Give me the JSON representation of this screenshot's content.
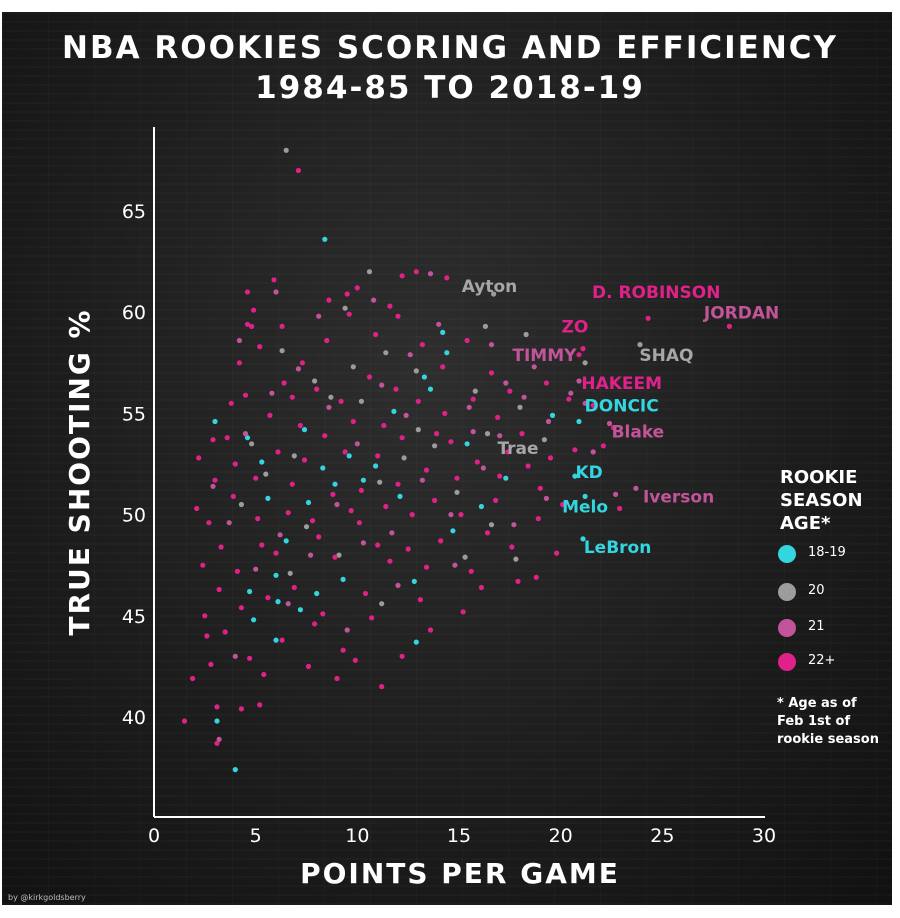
{
  "title_lines": [
    "NBA ROOKIES SCORING AND EFFICIENCY",
    "1984-85 TO 2018-19"
  ],
  "credit": "by @kirkgoldsberry",
  "legend": {
    "title_lines": [
      "ROOKIE",
      "SEASON",
      "AGE*"
    ],
    "items": [
      {
        "label": "18-19",
        "color": "#33d6e0"
      },
      {
        "label": "20",
        "color": "#9c9c9c"
      },
      {
        "label": "21",
        "color": "#c2559a"
      },
      {
        "label": "22+",
        "color": "#e0218a"
      }
    ],
    "note_lines": [
      "* Age as of",
      "Feb 1st of",
      "rookie season"
    ]
  },
  "chart_data": {
    "type": "scatter",
    "title": "NBA ROOKIES SCORING AND EFFICIENCY 1984-85 TO 2018-19",
    "xlabel": "POINTS PER GAME",
    "ylabel": "TRUE SHOOTING %",
    "xlim": [
      0,
      30
    ],
    "ylim": [
      36,
      70
    ],
    "x_ticks": [
      0,
      5,
      10,
      15,
      20,
      25,
      30
    ],
    "y_ticks": [
      40,
      45,
      50,
      55,
      60,
      65
    ],
    "grid": false,
    "legend_position": "right",
    "series": [
      {
        "name": "18-19",
        "color": "#33d6e0",
        "points": [
          [
            8.4,
            63.6
          ],
          [
            4.0,
            37.4
          ],
          [
            3.1,
            39.8
          ],
          [
            3.0,
            54.6
          ],
          [
            4.6,
            53.8
          ],
          [
            5.3,
            52.6
          ],
          [
            4.7,
            46.2
          ],
          [
            6.1,
            45.7
          ],
          [
            6.5,
            48.7
          ],
          [
            6.0,
            47.0
          ],
          [
            7.6,
            50.6
          ],
          [
            8.3,
            52.3
          ],
          [
            8.9,
            51.5
          ],
          [
            9.6,
            52.9
          ],
          [
            10.3,
            51.7
          ],
          [
            10.9,
            52.4
          ],
          [
            11.8,
            55.1
          ],
          [
            13.3,
            56.8
          ],
          [
            13.6,
            56.2
          ],
          [
            14.2,
            59.0
          ],
          [
            14.4,
            58.0
          ],
          [
            12.8,
            46.7
          ],
          [
            12.9,
            43.7
          ],
          [
            8.0,
            46.1
          ],
          [
            9.3,
            46.8
          ],
          [
            6.0,
            43.8
          ],
          [
            4.9,
            44.8
          ],
          [
            7.4,
            54.2
          ],
          [
            16.1,
            50.4
          ],
          [
            15.4,
            53.5
          ],
          [
            17.3,
            51.8
          ],
          [
            19.6,
            54.9
          ],
          [
            20.7,
            51.9
          ],
          [
            21.2,
            50.9
          ],
          [
            21.1,
            48.8
          ],
          [
            20.9,
            54.6
          ],
          [
            14.7,
            49.2
          ],
          [
            12.1,
            50.9
          ],
          [
            7.2,
            45.3
          ],
          [
            5.6,
            50.8
          ]
        ]
      },
      {
        "name": "20",
        "color": "#9c9c9c",
        "points": [
          [
            6.5,
            68.0
          ],
          [
            10.6,
            62.0
          ],
          [
            16.7,
            60.9
          ],
          [
            16.3,
            59.3
          ],
          [
            18.3,
            58.9
          ],
          [
            23.9,
            58.4
          ],
          [
            21.2,
            57.5
          ],
          [
            16.4,
            54.0
          ],
          [
            13.8,
            53.4
          ],
          [
            12.3,
            52.8
          ],
          [
            11.1,
            51.6
          ],
          [
            8.7,
            55.8
          ],
          [
            7.5,
            49.4
          ],
          [
            5.5,
            52.0
          ],
          [
            4.3,
            50.5
          ],
          [
            6.7,
            47.1
          ],
          [
            9.1,
            48.0
          ],
          [
            10.2,
            55.6
          ],
          [
            11.4,
            58.0
          ],
          [
            9.8,
            57.3
          ],
          [
            14.9,
            51.1
          ],
          [
            15.3,
            47.9
          ],
          [
            16.6,
            49.5
          ],
          [
            17.8,
            47.8
          ],
          [
            19.2,
            53.7
          ],
          [
            18.0,
            55.3
          ],
          [
            13.0,
            54.2
          ],
          [
            7.9,
            56.6
          ],
          [
            6.3,
            58.1
          ],
          [
            9.4,
            60.2
          ],
          [
            12.9,
            57.1
          ],
          [
            15.8,
            56.1
          ],
          [
            4.8,
            53.5
          ],
          [
            6.9,
            52.9
          ],
          [
            11.2,
            45.6
          ]
        ]
      },
      {
        "name": "21",
        "color": "#c2559a",
        "points": [
          [
            3.2,
            38.9
          ],
          [
            4.5,
            54.0
          ],
          [
            5.8,
            56.0
          ],
          [
            7.1,
            57.2
          ],
          [
            8.6,
            55.3
          ],
          [
            10.0,
            53.5
          ],
          [
            11.2,
            56.4
          ],
          [
            12.6,
            57.9
          ],
          [
            14.0,
            59.4
          ],
          [
            15.5,
            55.3
          ],
          [
            17.0,
            53.9
          ],
          [
            18.2,
            55.8
          ],
          [
            19.4,
            54.6
          ],
          [
            20.5,
            56.0
          ],
          [
            22.4,
            54.5
          ],
          [
            21.6,
            53.1
          ],
          [
            22.7,
            51.0
          ],
          [
            23.7,
            51.3
          ],
          [
            20.9,
            56.6
          ],
          [
            19.3,
            50.8
          ],
          [
            17.7,
            49.5
          ],
          [
            16.2,
            52.3
          ],
          [
            14.6,
            50.0
          ],
          [
            13.2,
            51.7
          ],
          [
            11.7,
            49.1
          ],
          [
            10.3,
            48.6
          ],
          [
            9.0,
            50.5
          ],
          [
            7.7,
            48.0
          ],
          [
            6.2,
            49.0
          ],
          [
            5.0,
            47.3
          ],
          [
            3.7,
            49.6
          ],
          [
            4.0,
            43.0
          ],
          [
            6.6,
            45.6
          ],
          [
            9.5,
            44.3
          ],
          [
            12.0,
            46.5
          ],
          [
            14.8,
            47.5
          ],
          [
            8.1,
            59.8
          ],
          [
            10.8,
            60.6
          ],
          [
            13.6,
            61.9
          ],
          [
            6.0,
            61.0
          ],
          [
            4.2,
            58.6
          ],
          [
            2.9,
            51.4
          ],
          [
            18.7,
            57.3
          ],
          [
            17.3,
            56.5
          ],
          [
            16.6,
            58.4
          ],
          [
            21.2,
            55.5
          ],
          [
            15.7,
            54.1
          ],
          [
            12.4,
            54.9
          ]
        ]
      },
      {
        "name": "22+",
        "color": "#e0218a",
        "points": [
          [
            7.1,
            67.0
          ],
          [
            12.9,
            62.0
          ],
          [
            14.4,
            61.7
          ],
          [
            12.2,
            61.8
          ],
          [
            10.0,
            61.2
          ],
          [
            9.5,
            60.9
          ],
          [
            5.9,
            61.6
          ],
          [
            4.6,
            61.0
          ],
          [
            4.9,
            60.1
          ],
          [
            24.3,
            59.7
          ],
          [
            28.3,
            59.3
          ],
          [
            1.5,
            39.8
          ],
          [
            3.1,
            38.7
          ],
          [
            1.9,
            41.9
          ],
          [
            2.8,
            42.6
          ],
          [
            3.1,
            40.5
          ],
          [
            4.3,
            40.4
          ],
          [
            5.2,
            40.6
          ],
          [
            11.2,
            41.5
          ],
          [
            9.3,
            43.3
          ],
          [
            2.5,
            45.0
          ],
          [
            2.4,
            47.5
          ],
          [
            2.7,
            49.6
          ],
          [
            3.0,
            51.7
          ],
          [
            2.2,
            52.8
          ],
          [
            3.8,
            55.5
          ],
          [
            4.2,
            57.5
          ],
          [
            4.8,
            59.3
          ],
          [
            5.2,
            58.3
          ],
          [
            6.3,
            59.3
          ],
          [
            7.3,
            57.5
          ],
          [
            8.5,
            58.6
          ],
          [
            9.6,
            59.9
          ],
          [
            10.9,
            58.9
          ],
          [
            12.0,
            59.8
          ],
          [
            13.2,
            58.4
          ],
          [
            14.2,
            57.3
          ],
          [
            15.4,
            58.6
          ],
          [
            16.6,
            57.0
          ],
          [
            17.5,
            56.1
          ],
          [
            19.3,
            56.5
          ],
          [
            20.4,
            55.7
          ],
          [
            21.6,
            55.4
          ],
          [
            22.6,
            54.3
          ],
          [
            22.1,
            53.4
          ],
          [
            20.7,
            53.2
          ],
          [
            19.5,
            52.8
          ],
          [
            18.4,
            52.4
          ],
          [
            17.0,
            51.9
          ],
          [
            15.9,
            52.6
          ],
          [
            14.6,
            53.6
          ],
          [
            13.4,
            52.2
          ],
          [
            12.2,
            53.8
          ],
          [
            11.0,
            52.9
          ],
          [
            9.8,
            54.6
          ],
          [
            8.4,
            53.9
          ],
          [
            7.2,
            54.4
          ],
          [
            6.1,
            53.1
          ],
          [
            5.0,
            51.8
          ],
          [
            4.0,
            52.5
          ],
          [
            3.3,
            48.4
          ],
          [
            4.1,
            47.2
          ],
          [
            5.3,
            48.5
          ],
          [
            6.6,
            50.1
          ],
          [
            7.8,
            49.7
          ],
          [
            8.9,
            47.9
          ],
          [
            10.1,
            49.6
          ],
          [
            11.4,
            50.4
          ],
          [
            12.5,
            48.3
          ],
          [
            13.8,
            50.7
          ],
          [
            15.1,
            50.0
          ],
          [
            16.4,
            49.1
          ],
          [
            17.6,
            48.4
          ],
          [
            18.9,
            49.8
          ],
          [
            20.1,
            50.5
          ],
          [
            19.8,
            48.1
          ],
          [
            17.9,
            46.7
          ],
          [
            15.6,
            47.2
          ],
          [
            13.1,
            45.8
          ],
          [
            11.6,
            47.7
          ],
          [
            10.4,
            46.1
          ],
          [
            8.3,
            45.1
          ],
          [
            6.9,
            46.4
          ],
          [
            5.6,
            45.9
          ],
          [
            4.3,
            45.4
          ],
          [
            3.5,
            44.2
          ],
          [
            4.7,
            42.9
          ],
          [
            6.3,
            43.8
          ],
          [
            7.9,
            44.6
          ],
          [
            9.9,
            42.8
          ],
          [
            3.6,
            53.8
          ],
          [
            4.5,
            55.9
          ],
          [
            5.7,
            54.9
          ],
          [
            6.8,
            55.8
          ],
          [
            8.0,
            56.2
          ],
          [
            9.2,
            55.6
          ],
          [
            10.6,
            56.8
          ],
          [
            11.9,
            56.2
          ],
          [
            13.0,
            55.6
          ],
          [
            14.3,
            55.0
          ],
          [
            15.7,
            55.7
          ],
          [
            16.9,
            54.8
          ],
          [
            18.1,
            54.0
          ],
          [
            20.9,
            57.9
          ],
          [
            21.1,
            58.2
          ],
          [
            2.1,
            50.3
          ],
          [
            3.2,
            46.3
          ],
          [
            2.6,
            44.0
          ],
          [
            6.8,
            51.5
          ],
          [
            8.8,
            51.0
          ],
          [
            10.2,
            51.2
          ],
          [
            12.7,
            50.0
          ],
          [
            14.1,
            48.7
          ],
          [
            16.1,
            46.4
          ],
          [
            18.8,
            46.9
          ],
          [
            15.2,
            45.2
          ],
          [
            13.6,
            44.3
          ],
          [
            10.7,
            44.9
          ],
          [
            7.6,
            42.5
          ],
          [
            5.4,
            42.1
          ],
          [
            8.6,
            60.6
          ],
          [
            11.6,
            60.3
          ],
          [
            4.6,
            59.4
          ],
          [
            22.9,
            50.3
          ],
          [
            7.4,
            52.7
          ],
          [
            9.4,
            53.1
          ],
          [
            11.3,
            54.4
          ],
          [
            13.9,
            54.0
          ],
          [
            6.4,
            56.5
          ],
          [
            3.9,
            50.9
          ],
          [
            5.1,
            49.8
          ],
          [
            9.7,
            50.2
          ],
          [
            12.0,
            51.5
          ],
          [
            16.8,
            50.7
          ],
          [
            19.0,
            51.3
          ],
          [
            17.4,
            53.1
          ],
          [
            14.9,
            51.8
          ],
          [
            8.1,
            48.9
          ],
          [
            6.0,
            48.1
          ],
          [
            11.0,
            48.5
          ],
          [
            13.4,
            47.4
          ],
          [
            12.2,
            43.0
          ],
          [
            9.0,
            41.9
          ],
          [
            2.9,
            53.7
          ]
        ]
      }
    ],
    "annotations": [
      {
        "text": "Ayton",
        "x": 16.5,
        "y": 61.0,
        "color": "#a6a6a6"
      },
      {
        "text": "D. ROBINSON",
        "x": 24.7,
        "y": 60.7,
        "color": "#e0218a"
      },
      {
        "text": "JORDAN",
        "x": 28.9,
        "y": 59.7,
        "color": "#c2559a"
      },
      {
        "text": "ZO",
        "x": 20.7,
        "y": 59.0,
        "color": "#e0218a"
      },
      {
        "text": "TIMMY",
        "x": 19.2,
        "y": 57.6,
        "color": "#c2559a"
      },
      {
        "text": "SHAQ",
        "x": 25.2,
        "y": 57.6,
        "color": "#a6a6a6"
      },
      {
        "text": "HAKEEM",
        "x": 23.0,
        "y": 56.2,
        "color": "#e0218a"
      },
      {
        "text": "DONCIC",
        "x": 23.0,
        "y": 55.1,
        "color": "#33d6e0"
      },
      {
        "text": "Blake",
        "x": 23.8,
        "y": 53.8,
        "color": "#c2559a"
      },
      {
        "text": "Trae",
        "x": 17.9,
        "y": 53.0,
        "color": "#a6a6a6"
      },
      {
        "text": "KD",
        "x": 21.4,
        "y": 51.8,
        "color": "#33d6e0"
      },
      {
        "text": "Iverson",
        "x": 25.8,
        "y": 50.6,
        "color": "#c2559a"
      },
      {
        "text": "Melo",
        "x": 21.2,
        "y": 50.1,
        "color": "#33d6e0"
      },
      {
        "text": "LeBron",
        "x": 22.8,
        "y": 48.1,
        "color": "#33d6e0"
      }
    ]
  }
}
